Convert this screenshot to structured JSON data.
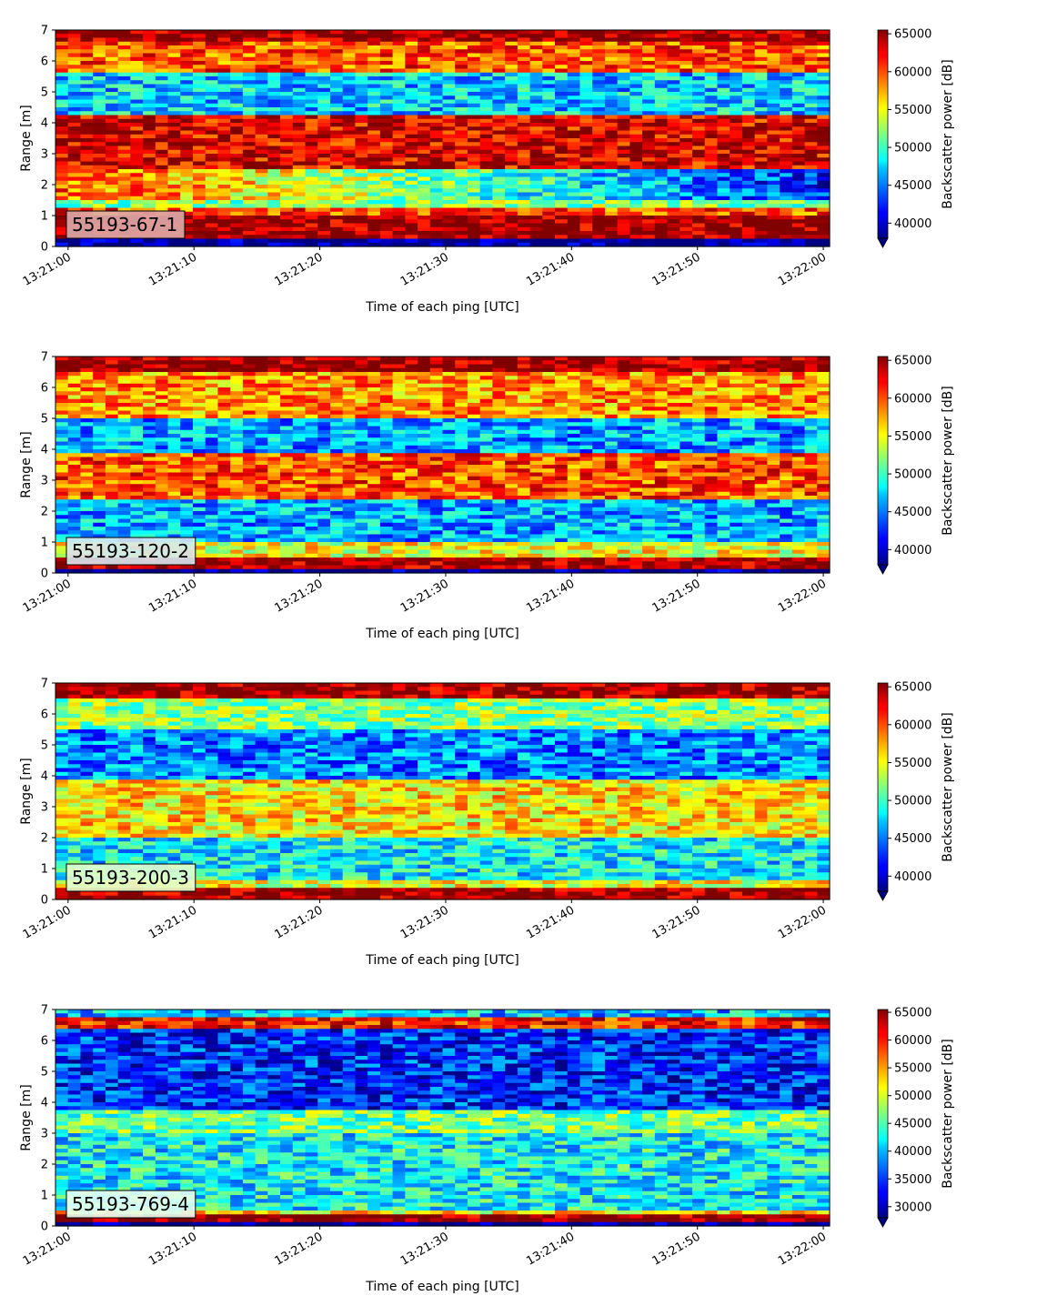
{
  "chart_data": [
    {
      "type": "heatmap",
      "label": "55193-67-1",
      "label_box_color": "#ddaaaa",
      "xlabel": "Time of each ping [UTC]",
      "ylabel": "Range [m]",
      "x_ticks": [
        "13:21:00",
        "13:21:10",
        "13:21:20",
        "13:21:30",
        "13:21:40",
        "13:21:50",
        "13:22:00"
      ],
      "xlim": [
        "13:20:59",
        "13:22:00.5"
      ],
      "y_ticks": [
        0,
        1,
        2,
        3,
        4,
        5,
        6,
        7
      ],
      "ylim": [
        0,
        7
      ],
      "colormap": "jet",
      "colorbar": {
        "label": "Backscatter power [dB]",
        "ticks": [
          40000,
          45000,
          50000,
          55000,
          60000,
          65000
        ],
        "range": [
          38000,
          65500
        ],
        "extend": "min"
      },
      "bands": [
        {
          "range": [
            0,
            0.25
          ],
          "value": 38000
        },
        {
          "range": [
            0.25,
            1.0
          ],
          "value": 65000
        },
        {
          "range": [
            1.0,
            1.3
          ],
          "value": 60000
        },
        {
          "range": [
            1.3,
            1.5
          ],
          "value": 52000
        },
        {
          "range": [
            1.5,
            2.5
          ],
          "value": [
            60000,
            42000
          ]
        },
        {
          "range": [
            2.5,
            4.3
          ],
          "value": 63000
        },
        {
          "range": [
            4.3,
            5.6
          ],
          "value": 47000
        },
        {
          "range": [
            5.6,
            6.6
          ],
          "value": 60000
        },
        {
          "range": [
            6.6,
            7.0
          ],
          "value": 65000
        }
      ]
    },
    {
      "type": "heatmap",
      "label": "55193-120-2",
      "label_box_color": "#d8e8f0",
      "xlabel": "Time of each ping [UTC]",
      "ylabel": "Range [m]",
      "x_ticks": [
        "13:21:00",
        "13:21:10",
        "13:21:20",
        "13:21:30",
        "13:21:40",
        "13:21:50",
        "13:22:00"
      ],
      "xlim": [
        "13:20:59",
        "13:22:00.5"
      ],
      "y_ticks": [
        0,
        1,
        2,
        3,
        4,
        5,
        6,
        7
      ],
      "ylim": [
        0,
        7
      ],
      "colormap": "jet",
      "colorbar": {
        "label": "Backscatter power [dB]",
        "ticks": [
          40000,
          45000,
          50000,
          55000,
          60000,
          65000
        ],
        "range": [
          38000,
          65500
        ],
        "extend": "min"
      },
      "bands": [
        {
          "range": [
            0,
            0.15
          ],
          "value": 38000
        },
        {
          "range": [
            0.15,
            0.55
          ],
          "value": 65000
        },
        {
          "range": [
            0.55,
            1.0
          ],
          "value": 55000
        },
        {
          "range": [
            1.0,
            2.4
          ],
          "value": 46000
        },
        {
          "range": [
            2.4,
            3.9
          ],
          "value": 60000
        },
        {
          "range": [
            3.9,
            5.0
          ],
          "value": 46000
        },
        {
          "range": [
            5.0,
            6.5
          ],
          "value": 58000
        },
        {
          "range": [
            6.5,
            7.0
          ],
          "value": 65000
        }
      ]
    },
    {
      "type": "heatmap",
      "label": "55193-200-3",
      "label_box_color": "#e6ffcc",
      "xlabel": "Time of each ping [UTC]",
      "ylabel": "Range [m]",
      "x_ticks": [
        "13:21:00",
        "13:21:10",
        "13:21:20",
        "13:21:30",
        "13:21:40",
        "13:21:50",
        "13:22:00"
      ],
      "xlim": [
        "13:20:59",
        "13:22:00.5"
      ],
      "y_ticks": [
        0,
        1,
        2,
        3,
        4,
        5,
        6,
        7
      ],
      "ylim": [
        0,
        7
      ],
      "colormap": "jet",
      "colorbar": {
        "label": "Backscatter power [dB]",
        "ticks": [
          40000,
          45000,
          50000,
          55000,
          60000,
          65000
        ],
        "range": [
          38000,
          65500
        ],
        "extend": "min"
      },
      "bands": [
        {
          "range": [
            0,
            0.35
          ],
          "value": 65000
        },
        {
          "range": [
            0.35,
            0.6
          ],
          "value": 55000
        },
        {
          "range": [
            0.6,
            2.0
          ],
          "value": 48000
        },
        {
          "range": [
            2.0,
            3.9
          ],
          "value": 56000
        },
        {
          "range": [
            3.9,
            5.5
          ],
          "value": 45000
        },
        {
          "range": [
            5.5,
            6.5
          ],
          "value": 52000
        },
        {
          "range": [
            6.5,
            7.0
          ],
          "value": 65000
        }
      ]
    },
    {
      "type": "heatmap",
      "label": "55193-769-4",
      "label_box_color": "#e6fff2",
      "xlabel": "Time of each ping [UTC]",
      "ylabel": "Range [m]",
      "x_ticks": [
        "13:21:00",
        "13:21:10",
        "13:21:20",
        "13:21:30",
        "13:21:40",
        "13:21:50",
        "13:22:00"
      ],
      "xlim": [
        "13:20:59",
        "13:22:00.5"
      ],
      "y_ticks": [
        0,
        1,
        2,
        3,
        4,
        5,
        6,
        7
      ],
      "ylim": [
        0,
        7
      ],
      "colormap": "jet",
      "colorbar": {
        "label": "Backscatter power [dB]",
        "ticks": [
          30000,
          35000,
          40000,
          45000,
          50000,
          55000,
          60000,
          65000
        ],
        "range": [
          28000,
          65500
        ],
        "extend": "min"
      },
      "bands": [
        {
          "range": [
            0,
            0.15
          ],
          "value": 28000
        },
        {
          "range": [
            0.15,
            0.35
          ],
          "value": 65000
        },
        {
          "range": [
            0.35,
            0.55
          ],
          "value": 52000
        },
        {
          "range": [
            0.55,
            3.0
          ],
          "value": 42000
        },
        {
          "range": [
            3.0,
            3.8
          ],
          "value": 46000
        },
        {
          "range": [
            3.8,
            6.4
          ],
          "value": 34000
        },
        {
          "range": [
            6.4,
            6.8
          ],
          "value": 60000
        },
        {
          "range": [
            6.8,
            7.0
          ],
          "value": 40000
        }
      ]
    }
  ]
}
